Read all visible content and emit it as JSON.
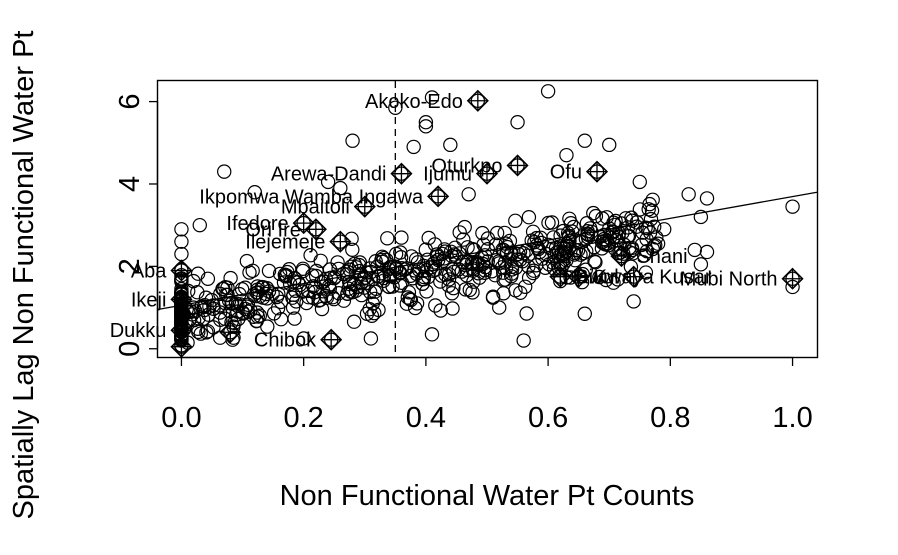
{
  "chart_data": {
    "type": "scatter",
    "title": "",
    "xlabel": "Non Functional Water Pt Counts",
    "ylabel": "Spatially Lag Non Functional Water Pt",
    "xlim": [
      -0.04,
      1.04
    ],
    "ylim": [
      -0.2,
      6.5
    ],
    "xticks": [
      "0.0",
      "0.2",
      "0.4",
      "0.6",
      "0.8",
      "1.0"
    ],
    "xtick_values": [
      0.0,
      0.2,
      0.4,
      0.6,
      0.8,
      1.0
    ],
    "yticks": [
      "0",
      "2",
      "4",
      "6"
    ],
    "ytick_values": [
      0,
      2,
      4,
      6
    ],
    "grid": false,
    "mean_x": 0.35,
    "regression": {
      "x0": -0.04,
      "y0": 0.95,
      "x1": 1.04,
      "y1": 3.8
    },
    "cluster_seed": 7,
    "cluster_count": 620,
    "points": [
      [
        0.41,
        6.1
      ],
      [
        0.6,
        6.25
      ],
      [
        0.28,
        5.05
      ],
      [
        0.4,
        5.5
      ],
      [
        0.4,
        5.4
      ],
      [
        0.55,
        5.5
      ],
      [
        0.44,
        4.95
      ],
      [
        0.38,
        4.9
      ],
      [
        0.66,
        5.05
      ],
      [
        0.7,
        4.95
      ],
      [
        0.63,
        4.7
      ],
      [
        0.07,
        4.3
      ],
      [
        0.24,
        4.05
      ],
      [
        0.75,
        4.05
      ],
      [
        0.83,
        3.75
      ],
      [
        0.86,
        3.65
      ],
      [
        0.77,
        3.35
      ],
      [
        0.79,
        2.9
      ],
      [
        0.85,
        3.2
      ],
      [
        0.78,
        2.55
      ],
      [
        0.84,
        2.4
      ],
      [
        0.86,
        2.35
      ],
      [
        0.85,
        2.05
      ],
      [
        0.76,
        1.85
      ],
      [
        0.74,
        1.15
      ],
      [
        0.66,
        0.85
      ],
      [
        0.56,
        0.2
      ],
      [
        0.31,
        0.25
      ],
      [
        0.2,
        0.25
      ],
      [
        0.41,
        0.35
      ],
      [
        1.0,
        3.45
      ],
      [
        1.0,
        1.5
      ],
      [
        0.0,
        2.9
      ],
      [
        0.0,
        2.6
      ],
      [
        0.0,
        2.3
      ],
      [
        0.03,
        3.0
      ],
      [
        0.0,
        1.2
      ],
      [
        0.02,
        1.0
      ],
      [
        0.0,
        0.2
      ],
      [
        0.01,
        0.15
      ],
      [
        0.52,
        1.0
      ],
      [
        0.47,
        3.75
      ],
      [
        0.12,
        3.8
      ],
      [
        0.26,
        3.9
      ],
      [
        0.35,
        5.85
      ]
    ],
    "influential": [
      {
        "x": 0.485,
        "y": 6.02,
        "label": "Akoko-Edo",
        "pos": "left"
      },
      {
        "x": 0.36,
        "y": 4.25,
        "label": "Arewa-Dandi",
        "pos": "left"
      },
      {
        "x": 0.55,
        "y": 4.45,
        "label": "Oturkpo",
        "pos": "left"
      },
      {
        "x": 0.5,
        "y": 4.25,
        "label": "Ijumu",
        "pos": "left"
      },
      {
        "x": 0.68,
        "y": 4.3,
        "label": "Ofu",
        "pos": "left"
      },
      {
        "x": 0.42,
        "y": 3.7,
        "label": "Ikpomwa Wamba Ingawa",
        "pos": "left"
      },
      {
        "x": 0.3,
        "y": 3.45,
        "label": "Mbaitoli",
        "pos": "left"
      },
      {
        "x": 0.22,
        "y": 2.9,
        "label": "Ori Ire",
        "pos": "left"
      },
      {
        "x": 0.2,
        "y": 3.05,
        "label": "Ifedore",
        "pos": "left"
      },
      {
        "x": 0.26,
        "y": 2.6,
        "label": "Ilejemeje",
        "pos": "left"
      },
      {
        "x": 0.0,
        "y": 1.9,
        "label": "Aba",
        "pos": "left"
      },
      {
        "x": 0.0,
        "y": 1.2,
        "label": "Ikeji",
        "pos": "left"
      },
      {
        "x": 0.0,
        "y": 0.45,
        "label": "Dukku",
        "pos": "left"
      },
      {
        "x": 0.0,
        "y": 0.05,
        "label": "",
        "pos": "left"
      },
      {
        "x": 0.08,
        "y": 0.4,
        "label": "",
        "pos": "left"
      },
      {
        "x": 0.245,
        "y": 0.22,
        "label": "Chibok",
        "pos": "left"
      },
      {
        "x": 0.62,
        "y": 1.75,
        "label": "Biu",
        "pos": "right"
      },
      {
        "x": 0.74,
        "y": 1.75,
        "label": "Hawul",
        "pos": "left"
      },
      {
        "x": 0.65,
        "y": 1.75,
        "label": "Kwaya Kusar",
        "pos": "right"
      },
      {
        "x": 0.72,
        "y": 2.25,
        "label": "Shani",
        "pos": "right"
      },
      {
        "x": 1.0,
        "y": 1.7,
        "label": "Mubi North",
        "pos": "left"
      },
      {
        "x": 0.62,
        "y": 2.1,
        "label": "",
        "pos": "left"
      }
    ]
  }
}
